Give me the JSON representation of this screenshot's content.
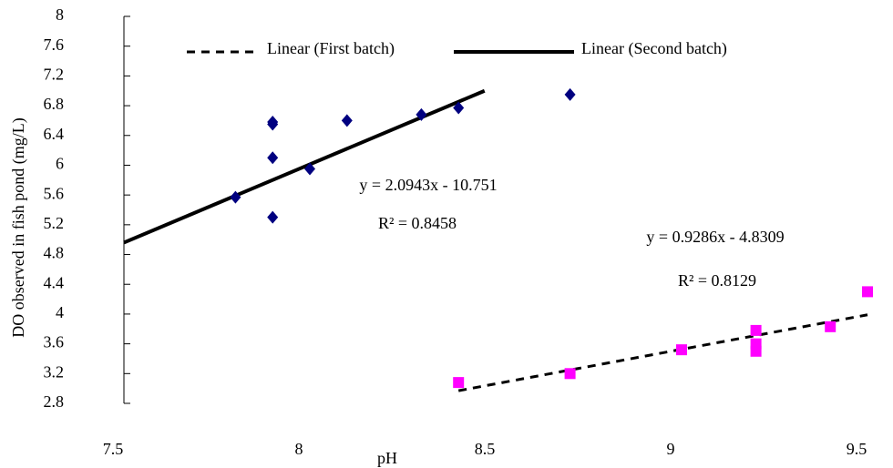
{
  "chart_data": {
    "type": "scatter",
    "x_label": "pH",
    "y_label": "DO observed in fish pond (mg/L)",
    "xlim": [
      7.5,
      9.5
    ],
    "xticks": [
      7.5,
      8,
      8.5,
      9,
      9.5
    ],
    "ylim": [
      2.8,
      8
    ],
    "yticks": [
      2.8,
      3.2,
      3.6,
      4,
      4.4,
      4.8,
      5.2,
      5.6,
      6,
      6.4,
      6.8,
      7.2,
      7.6,
      8
    ],
    "series": [
      {
        "marker": "diamond",
        "color": "#000080",
        "x": [
          7.8,
          7.9,
          7.9,
          7.9,
          7.9,
          8.0,
          8.1,
          8.3,
          8.4,
          8.7
        ],
        "values": [
          5.57,
          5.3,
          6.1,
          6.55,
          6.58,
          5.95,
          6.6,
          6.68,
          6.77,
          6.95
        ]
      },
      {
        "marker": "square",
        "color": "#ff00ff",
        "x": [
          8.4,
          8.7,
          9.0,
          9.2,
          9.2,
          9.2,
          9.4,
          9.5
        ],
        "values": [
          3.08,
          3.2,
          3.52,
          3.5,
          3.6,
          3.78,
          3.83,
          4.3
        ]
      },
      {
        "name": "Linear (First batch)",
        "line": "dashed",
        "color": "#000000",
        "x": [
          8.4,
          9.5
        ],
        "values": [
          2.97,
          3.99
        ]
      },
      {
        "name": "Linear (Second batch)",
        "line": "solid",
        "color": "#000000",
        "x": [
          7.5,
          8.47
        ],
        "values": [
          4.96,
          7.0
        ]
      }
    ],
    "annotations": [
      "y = 2.0943x - 10.751",
      "R² = 0.8458",
      "y = 0.9286x - 4.8309",
      "R² = 0.8129"
    ]
  }
}
